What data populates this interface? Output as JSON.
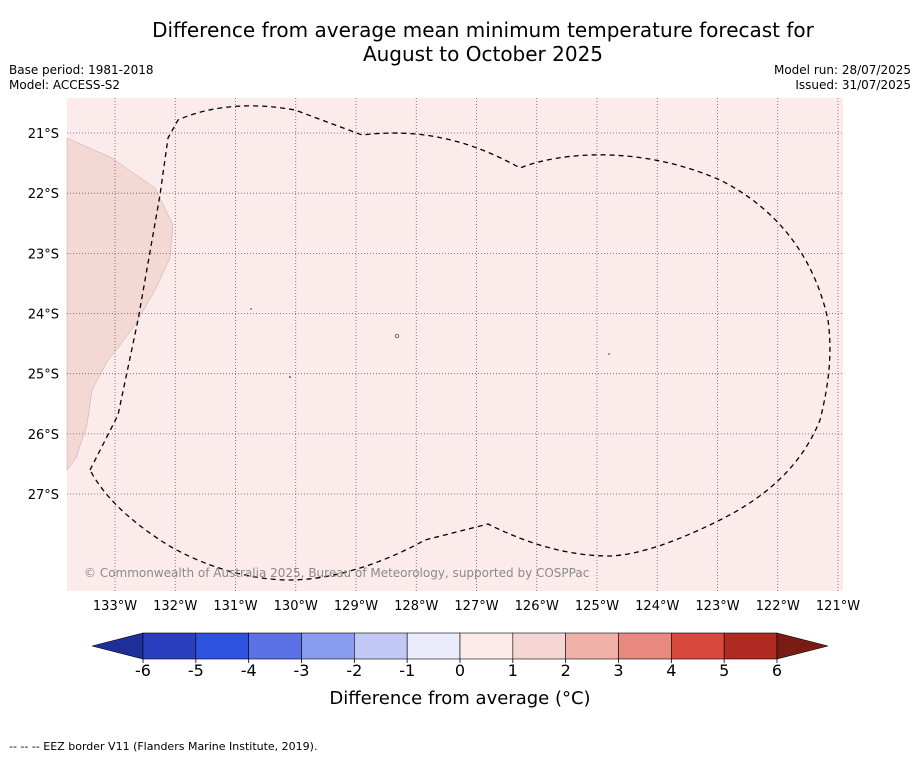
{
  "title_line1": "Difference from average mean minimum temperature forecast for",
  "title_line2": "August to October 2025",
  "meta_left": {
    "base_period": "Base period: 1981-2018",
    "model": "Model: ACCESS-S2"
  },
  "meta_right": {
    "model_run": "Model run: 28/07/2025",
    "issued": "Issued: 31/07/2025"
  },
  "copyright": "© Commonwealth of Australia 2025, Bureau of Meteorology, supported by COSPPac",
  "longitude_labels": [
    "133°W",
    "132°W",
    "131°W",
    "130°W",
    "129°W",
    "128°W",
    "127°W",
    "126°W",
    "125°W",
    "124°W",
    "123°W",
    "122°W",
    "121°W"
  ],
  "latitude_labels": [
    "21°S",
    "22°S",
    "23°S",
    "24°S",
    "25°S",
    "26°S",
    "27°S"
  ],
  "colorbar": {
    "ticks": [
      "-6",
      "-5",
      "-4",
      "-3",
      "-2",
      "-1",
      "0",
      "1",
      "2",
      "3",
      "4",
      "5",
      "6"
    ],
    "colors": [
      "#1f2f9a",
      "#2a3fbf",
      "#2d52e0",
      "#5a72e6",
      "#8a9cf0",
      "#c2c9f6",
      "#eaecfc",
      "#fcebe8",
      "#f6d6d2",
      "#efb0a8",
      "#e8887f",
      "#d9483c",
      "#b02a22",
      "#7a1b14"
    ],
    "label": "Difference from average (°C)"
  },
  "map_colors": {
    "ocean": "#fbeceb",
    "land": "#f4d8d4"
  },
  "footer": "--  --  -- EEZ border V11 (Flanders Marine Institute, 2019)."
}
